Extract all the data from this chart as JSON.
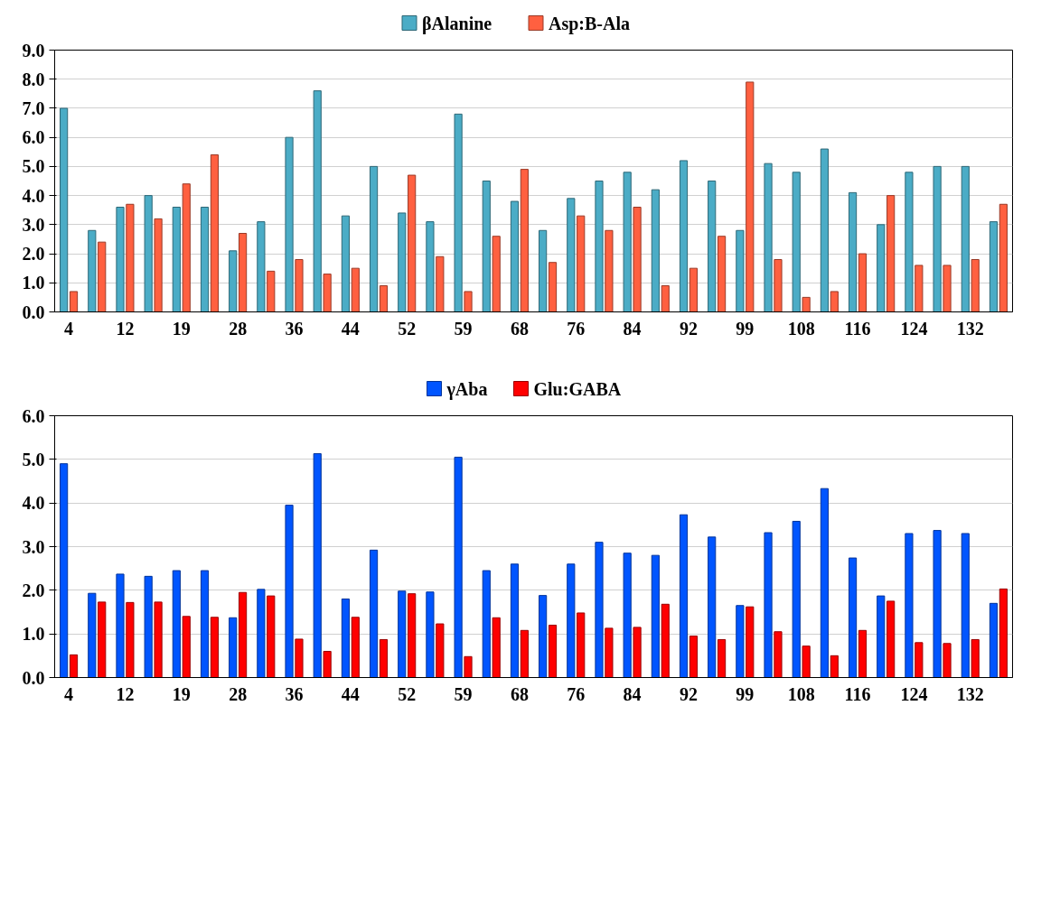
{
  "chart_data": [
    {
      "type": "bar",
      "categories": [
        "4",
        null,
        "12",
        null,
        "19",
        null,
        "28",
        null,
        "36",
        null,
        "44",
        null,
        "52",
        null,
        "59",
        null,
        "68",
        null,
        "76",
        null,
        "84",
        null,
        "92",
        null,
        "99",
        null,
        "108",
        null,
        "116",
        null,
        "124",
        null,
        "132",
        null
      ],
      "series": [
        {
          "name": "βAlanine",
          "color": "#4bacc6",
          "values": [
            7.0,
            2.8,
            3.6,
            4.0,
            3.6,
            3.6,
            2.1,
            3.1,
            6.0,
            7.6,
            3.3,
            5.0,
            3.4,
            3.1,
            6.8,
            4.5,
            3.8,
            2.8,
            3.9,
            4.5,
            4.8,
            4.2,
            5.2,
            4.5,
            2.8,
            5.1,
            4.8,
            5.6,
            4.1,
            3.0,
            4.8,
            5.0,
            5.0,
            3.1
          ]
        },
        {
          "name": "Asp:B-Ala",
          "color": "#ff6040",
          "values": [
            0.7,
            2.4,
            3.7,
            3.2,
            4.4,
            5.4,
            2.7,
            1.4,
            1.8,
            1.3,
            1.5,
            0.9,
            4.7,
            1.9,
            0.7,
            2.6,
            4.9,
            1.7,
            3.3,
            2.8,
            3.6,
            0.9,
            1.5,
            2.6,
            7.9,
            1.8,
            0.5,
            0.7,
            2.0,
            4.0,
            1.6,
            1.6,
            1.8,
            3.7
          ]
        }
      ],
      "ylim": [
        0,
        9
      ],
      "yticks": [
        {
          "value": 0,
          "label": "0.0"
        },
        {
          "value": 1,
          "label": "1.0"
        },
        {
          "value": 2,
          "label": "2.0"
        },
        {
          "value": 3,
          "label": "3.0"
        },
        {
          "value": 4,
          "label": "4.0"
        },
        {
          "value": 5,
          "label": "5.0"
        },
        {
          "value": 6,
          "label": "6.0"
        },
        {
          "value": 7,
          "label": "7.0"
        },
        {
          "value": 8,
          "label": "8.0"
        },
        {
          "value": 9,
          "label": "9.0"
        }
      ],
      "grid": "y",
      "legend": "top"
    },
    {
      "type": "bar",
      "categories": [
        "4",
        null,
        "12",
        null,
        "19",
        null,
        "28",
        null,
        "36",
        null,
        "44",
        null,
        "52",
        null,
        "59",
        null,
        "68",
        null,
        "76",
        null,
        "84",
        null,
        "92",
        null,
        "99",
        null,
        "108",
        null,
        "116",
        null,
        "124",
        null,
        "132",
        null
      ],
      "series": [
        {
          "name": "γAba",
          "color": "#0055ff",
          "values": [
            4.9,
            1.93,
            2.37,
            2.32,
            2.45,
            2.45,
            1.37,
            2.02,
            3.95,
            5.13,
            1.8,
            2.92,
            1.98,
            1.96,
            5.05,
            2.45,
            2.6,
            1.88,
            2.6,
            3.1,
            2.85,
            2.8,
            3.73,
            3.22,
            1.65,
            3.32,
            3.58,
            4.33,
            2.74,
            1.87,
            3.3,
            3.37,
            3.3,
            1.7
          ]
        },
        {
          "name": "Glu:GABA",
          "color": "#ff0000",
          "values": [
            0.52,
            1.73,
            1.72,
            1.73,
            1.4,
            1.38,
            1.95,
            1.87,
            0.88,
            0.6,
            1.38,
            0.87,
            1.92,
            1.23,
            0.48,
            1.37,
            1.08,
            1.2,
            1.48,
            1.13,
            1.15,
            1.68,
            0.95,
            0.87,
            1.62,
            1.05,
            0.72,
            0.5,
            1.08,
            1.75,
            0.8,
            0.78,
            0.87,
            2.03
          ]
        }
      ],
      "ylim": [
        0,
        6
      ],
      "yticks": [
        {
          "value": 0,
          "label": "0.0"
        },
        {
          "value": 1,
          "label": "1.0"
        },
        {
          "value": 2,
          "label": "2.0"
        },
        {
          "value": 3,
          "label": "3.0"
        },
        {
          "value": 4,
          "label": "4.0"
        },
        {
          "value": 5,
          "label": "5.0"
        },
        {
          "value": 6,
          "label": "6.0"
        }
      ],
      "grid": "y",
      "legend": "top"
    }
  ]
}
